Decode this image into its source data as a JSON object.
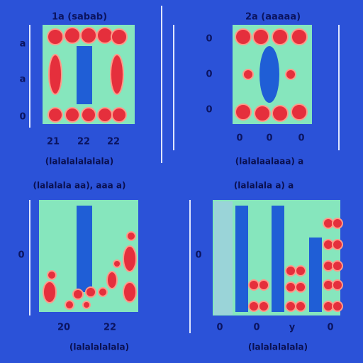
{
  "panels": [
    {
      "title": "1a (sabab)",
      "y_labels": [
        "a",
        "a",
        "0"
      ],
      "x_labels": [
        "21",
        "22",
        "22"
      ],
      "caption": "(lalalalalalala)"
    },
    {
      "title": "2a (aaaaa)",
      "y_labels": [
        "0",
        "0",
        "0"
      ],
      "x_labels": [
        "0",
        "0",
        "0"
      ],
      "caption": "(lalalaalaaa) a"
    },
    {
      "title": "(lalalala aa), aaa a)",
      "y_labels": [
        "0"
      ],
      "x_labels": [
        "20",
        "22"
      ],
      "caption": "(lalalalalala)"
    },
    {
      "title": "(lalalala a) a",
      "y_labels": [
        "0"
      ],
      "x_labels": [
        "0",
        "0",
        "y",
        "0"
      ],
      "caption": "(lalalalalala)"
    }
  ]
}
